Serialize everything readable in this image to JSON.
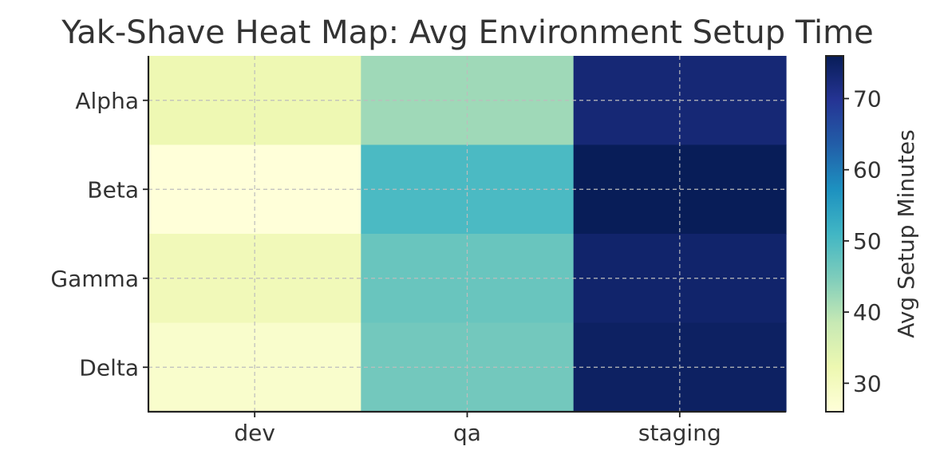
{
  "chart_data": {
    "type": "heatmap",
    "title": "Yak-Shave Heat Map: Avg Environment Setup Time",
    "columns": [
      "dev",
      "qa",
      "staging"
    ],
    "rows": [
      "Alpha",
      "Beta",
      "Gamma",
      "Delta"
    ],
    "values": [
      [
        32,
        42,
        73
      ],
      [
        26,
        50,
        76
      ],
      [
        31,
        47,
        74
      ],
      [
        28,
        46,
        75
      ]
    ],
    "colorbar": {
      "label": "Avg Setup Minutes",
      "range": [
        26,
        76
      ],
      "ticks": [
        "30",
        "40",
        "50",
        "60",
        "70"
      ],
      "colormap": "YlGnBu"
    },
    "grid": true
  }
}
